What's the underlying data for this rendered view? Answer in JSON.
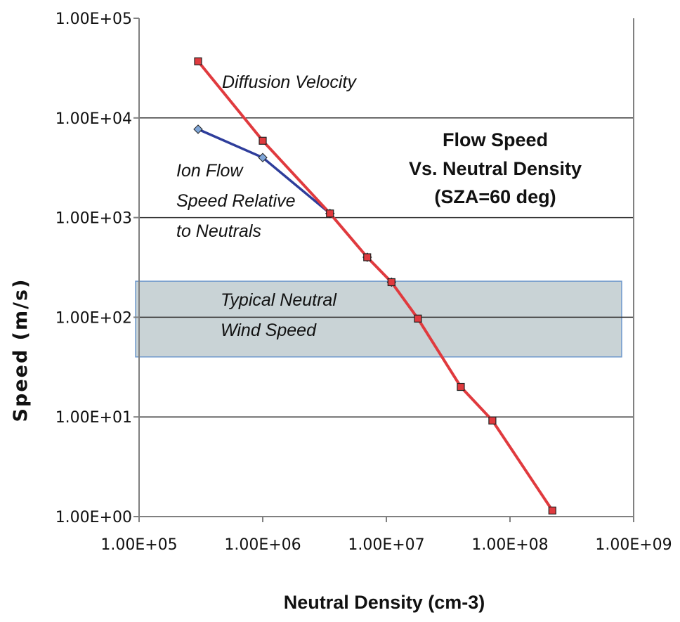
{
  "chart_data": {
    "type": "line",
    "title": [
      "Flow Speed",
      "Vs. Neutral Density",
      "(SZA=60 deg)"
    ],
    "xlabel": "Neutral Density (cm-3)",
    "ylabel": "Speed (m/s)",
    "x_scale": "log",
    "y_scale": "log",
    "xlim": [
      100000,
      1000000000
    ],
    "ylim": [
      1,
      100000
    ],
    "x_ticks": [
      "1.00E+05",
      "1.00E+06",
      "1.00E+07",
      "1.00E+08",
      "1.00E+09"
    ],
    "y_ticks": [
      "1.00E+00",
      "1.00E+01",
      "1.00E+02",
      "1.00E+03",
      "1.00E+04",
      "1.00E+05"
    ],
    "grid": "horizontal",
    "band": {
      "label": [
        "Typical Neutral",
        "Wind Speed"
      ],
      "ymin": 40,
      "ymax": 230,
      "xmin": 100000,
      "xmax": 800000000,
      "color": "#c9d3d6",
      "border": "#6f99cc"
    },
    "series": [
      {
        "name": [
          "Diffusion Velocity"
        ],
        "color": "#e03a3e",
        "marker": "square",
        "x": [
          300000,
          1000000,
          3500000,
          7000000,
          11000000,
          18000000,
          40000000,
          72000000,
          220000000
        ],
        "y": [
          37000,
          5900,
          1100,
          400,
          225,
          97,
          20,
          9.2,
          1.15
        ]
      },
      {
        "name": [
          "Ion Flow",
          "Speed Relative",
          "to Neutrals"
        ],
        "color": "#2e3d9b",
        "marker": "diamond",
        "x": [
          300000,
          1000000,
          3500000,
          7000000,
          11000000
        ],
        "y": [
          7700,
          4000,
          1100,
          400,
          225
        ]
      }
    ],
    "colors": {
      "axis": "#808080",
      "grid": "#333333",
      "text": "#111111"
    }
  }
}
